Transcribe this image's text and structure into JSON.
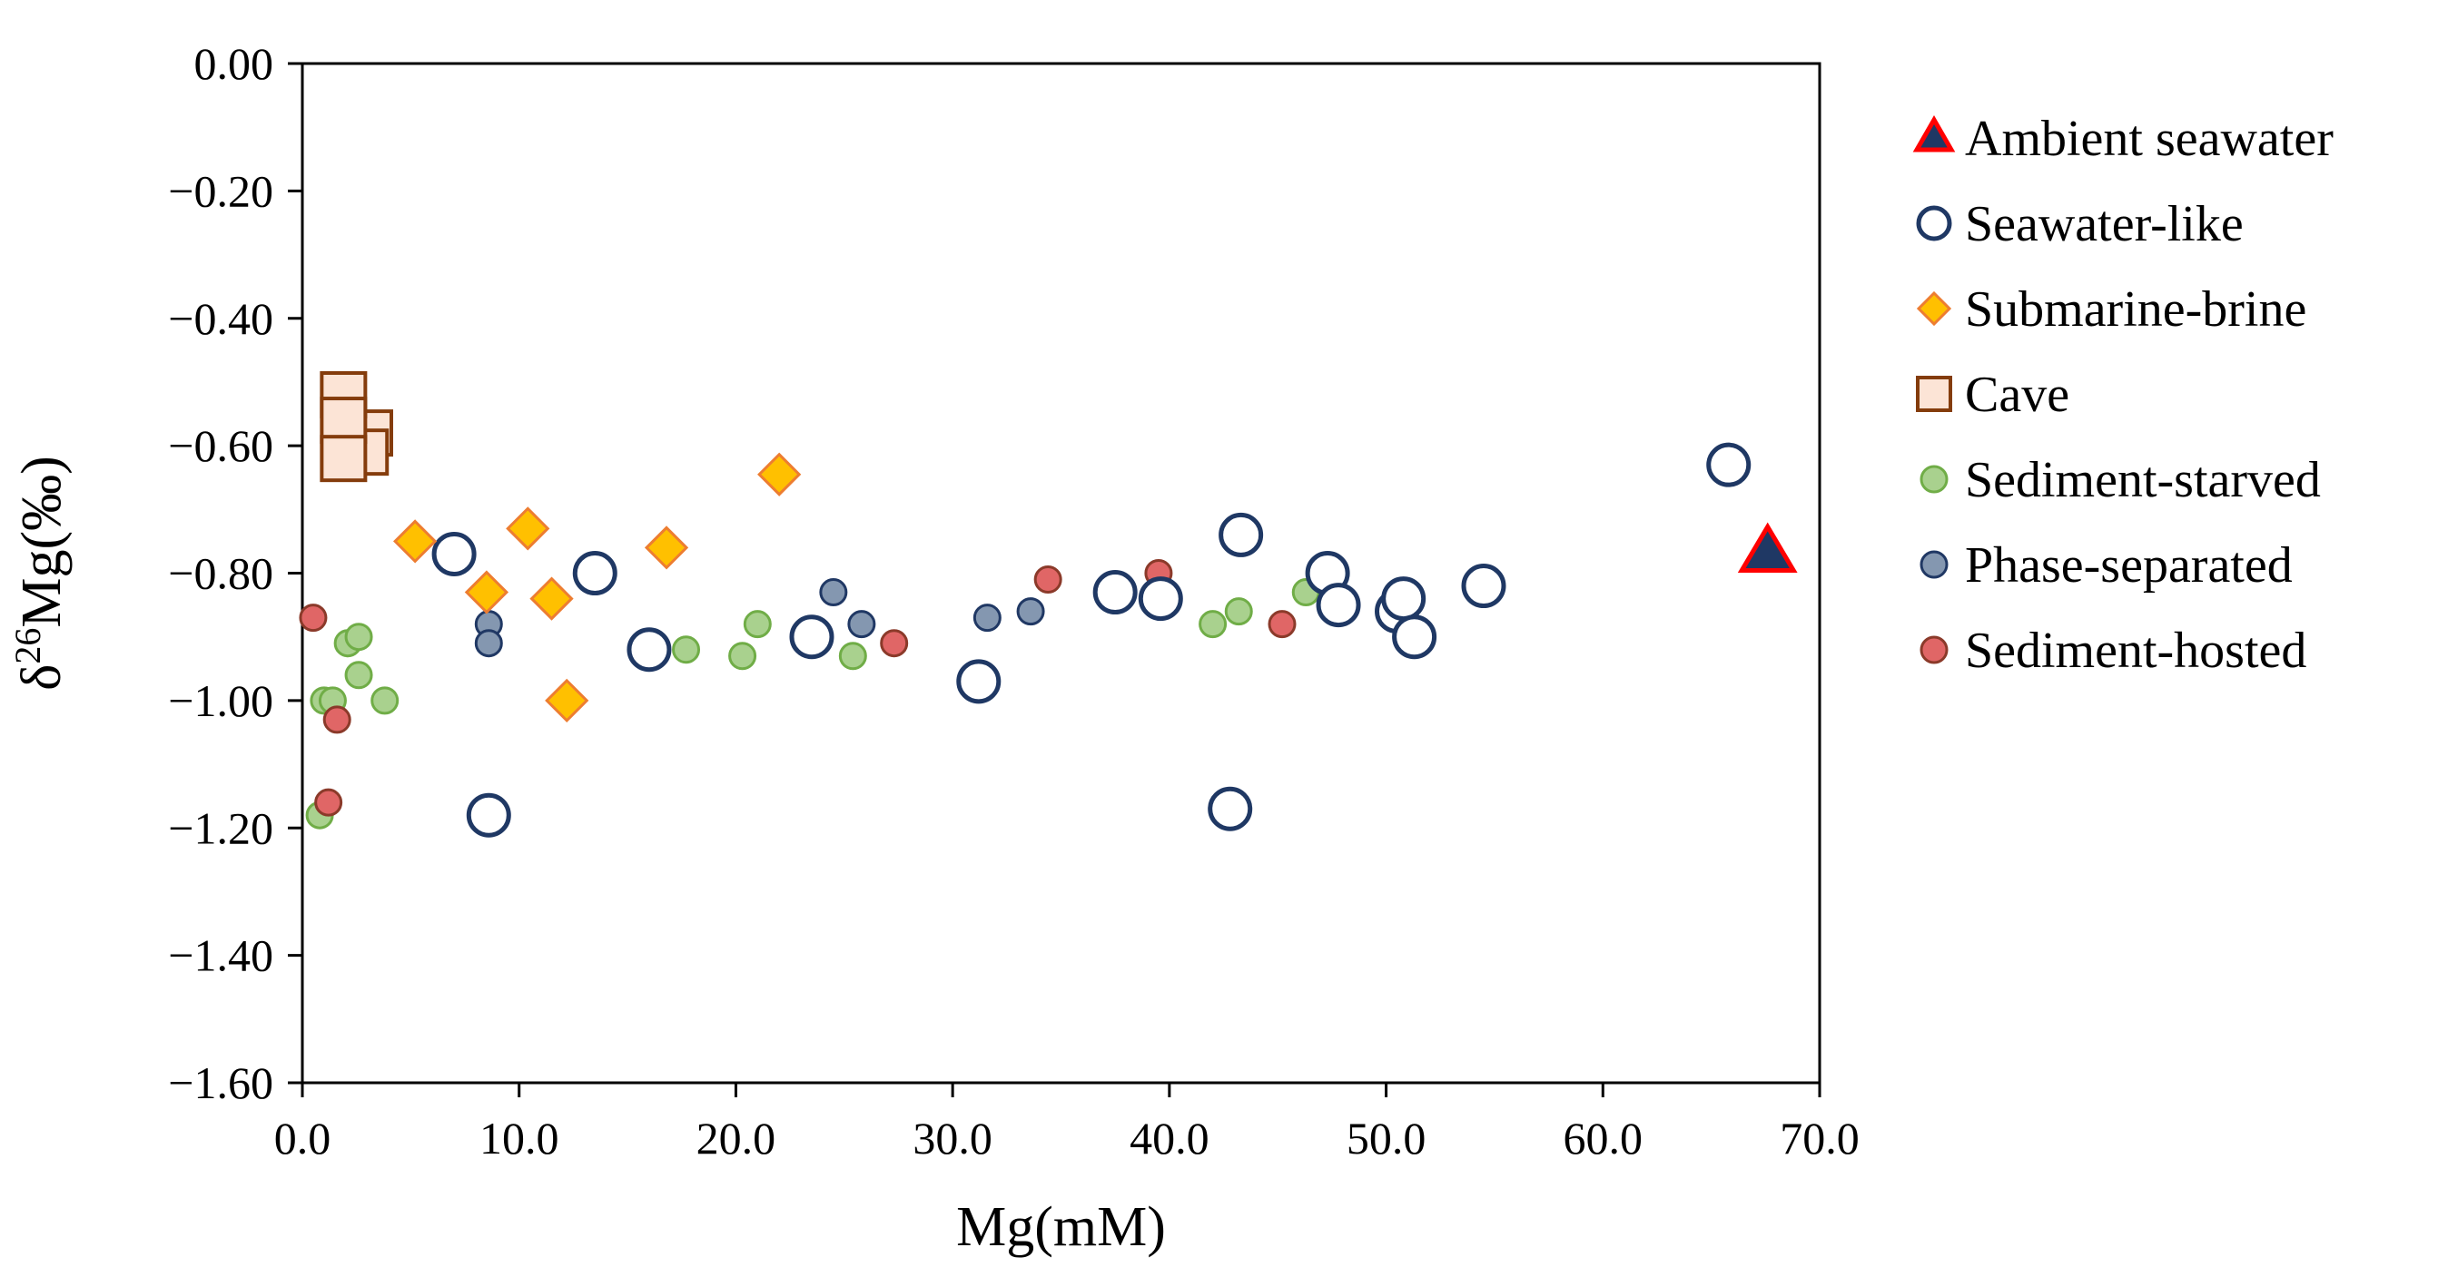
{
  "chart_data": {
    "type": "scatter",
    "xlabel": "Mg(mM)",
    "ylabel_parts": {
      "prefix": "δ",
      "superscript": "26",
      "suffix": "Mg(‰)"
    },
    "xlim": [
      0,
      70
    ],
    "ylim": [
      -1.6,
      0
    ],
    "x_ticks": [
      {
        "value": 0,
        "label": "0.0"
      },
      {
        "value": 10,
        "label": "10.0"
      },
      {
        "value": 20,
        "label": "20.0"
      },
      {
        "value": 30,
        "label": "30.0"
      },
      {
        "value": 40,
        "label": "40.0"
      },
      {
        "value": 50,
        "label": "50.0"
      },
      {
        "value": 60,
        "label": "60.0"
      },
      {
        "value": 70,
        "label": "70.0"
      }
    ],
    "y_ticks": [
      {
        "value": 0,
        "label": "0.00"
      },
      {
        "value": -0.2,
        "label": "−0.20"
      },
      {
        "value": -0.4,
        "label": "−0.40"
      },
      {
        "value": -0.6,
        "label": "−0.60"
      },
      {
        "value": -0.8,
        "label": "−0.80"
      },
      {
        "value": -1.0,
        "label": "−1.00"
      },
      {
        "value": -1.2,
        "label": "−1.20"
      },
      {
        "value": -1.4,
        "label": "−1.40"
      },
      {
        "value": -1.6,
        "label": "−1.60"
      }
    ],
    "grid": false,
    "legend_position": "right",
    "series": [
      {
        "name": "Sediment-starved",
        "marker": "circle-small",
        "fill": "#a9d18e",
        "stroke": "#70ad47",
        "points": [
          [
            0.8,
            -1.18
          ],
          [
            1.0,
            -1.0
          ],
          [
            1.4,
            -1.0
          ],
          [
            2.1,
            -0.91
          ],
          [
            2.6,
            -0.96
          ],
          [
            2.6,
            -0.9
          ],
          [
            3.8,
            -1.0
          ],
          [
            17.7,
            -0.92
          ],
          [
            20.3,
            -0.93
          ],
          [
            21.0,
            -0.88
          ],
          [
            25.4,
            -0.93
          ],
          [
            42.0,
            -0.88
          ],
          [
            43.2,
            -0.86
          ],
          [
            46.3,
            -0.83
          ]
        ]
      },
      {
        "name": "Phase-separated",
        "marker": "circle-small",
        "fill": "#8497b0",
        "stroke": "#203864",
        "points": [
          [
            8.6,
            -0.88
          ],
          [
            8.6,
            -0.91
          ],
          [
            24.5,
            -0.83
          ],
          [
            25.8,
            -0.88
          ],
          [
            31.6,
            -0.87
          ],
          [
            33.6,
            -0.86
          ]
        ]
      },
      {
        "name": "Sediment-hosted",
        "marker": "circle-small",
        "fill": "#e06666",
        "stroke": "#8b3a2a",
        "points": [
          [
            0.5,
            -0.87
          ],
          [
            1.2,
            -1.16
          ],
          [
            1.6,
            -1.03
          ],
          [
            27.3,
            -0.91
          ],
          [
            34.4,
            -0.81
          ],
          [
            39.5,
            -0.8
          ],
          [
            45.2,
            -0.88
          ]
        ]
      },
      {
        "name": "Cave",
        "marker": "square",
        "fill": "#fce4d6",
        "stroke": "#843c0c",
        "points": [
          [
            3.1,
            -0.58
          ],
          [
            2.9,
            -0.61
          ],
          [
            1.9,
            -0.52
          ],
          [
            1.9,
            -0.56
          ],
          [
            1.9,
            -0.62
          ]
        ]
      },
      {
        "name": "Seawater-like",
        "marker": "circle-large",
        "fill": "#ffffff",
        "stroke": "#1f3864",
        "points": [
          [
            7.0,
            -0.77
          ],
          [
            8.6,
            -1.18
          ],
          [
            13.5,
            -0.8
          ],
          [
            16.0,
            -0.92
          ],
          [
            23.5,
            -0.9
          ],
          [
            31.2,
            -0.97
          ],
          [
            37.5,
            -0.83
          ],
          [
            39.6,
            -0.84
          ],
          [
            42.8,
            -1.17
          ],
          [
            43.3,
            -0.74
          ],
          [
            47.3,
            -0.8
          ],
          [
            47.8,
            -0.85
          ],
          [
            50.5,
            -0.86
          ],
          [
            50.8,
            -0.84
          ],
          [
            51.3,
            -0.9
          ],
          [
            54.5,
            -0.82
          ],
          [
            65.8,
            -0.63
          ]
        ]
      },
      {
        "name": "Submarine-brine",
        "marker": "diamond",
        "fill": "#ffc000",
        "stroke": "#ed7d31",
        "points": [
          [
            5.2,
            -0.75
          ],
          [
            8.5,
            -0.83
          ],
          [
            10.4,
            -0.73
          ],
          [
            11.5,
            -0.84
          ],
          [
            12.2,
            -1.0
          ],
          [
            16.8,
            -0.76
          ],
          [
            22.0,
            -0.645
          ]
        ]
      },
      {
        "name": "Ambient seawater",
        "marker": "triangle",
        "fill": "#1f3864",
        "stroke": "#ff0000",
        "points": [
          [
            67.6,
            -0.77
          ]
        ]
      }
    ],
    "legend_order": [
      "Ambient seawater",
      "Seawater-like",
      "Submarine-brine",
      "Cave",
      "Sediment-starved",
      "Phase-separated",
      "Sediment-hosted"
    ]
  }
}
